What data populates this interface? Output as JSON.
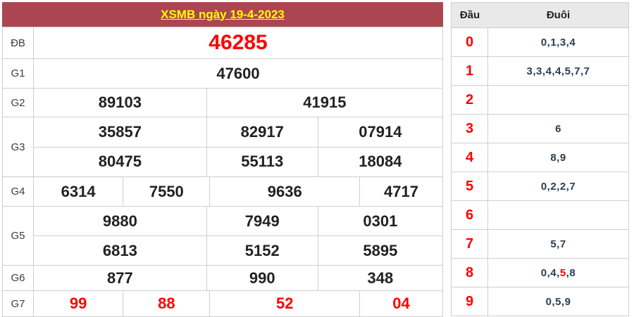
{
  "title": "XSMB ngày 19-4-2023",
  "colors": {
    "header_bg": "#ab4650",
    "title_text": "#ffff00",
    "highlight_red": "#ff0000",
    "tail_text": "#2c3e50",
    "border": "#cfcfcf",
    "head_row_bg": "#e9e9e9"
  },
  "left_table": {
    "labels": {
      "db": "ĐB",
      "g1": "G1",
      "g2": "G2",
      "g3": "G3",
      "g4": "G4",
      "g5": "G5",
      "g6": "G6",
      "g7": "G7"
    },
    "db": "46285",
    "g1": "47600",
    "g2": [
      "89103",
      "41915"
    ],
    "g3": [
      [
        "35857",
        "82917",
        "07914"
      ],
      [
        "80475",
        "55113",
        "18084"
      ]
    ],
    "g4": [
      "6314",
      "7550",
      "9636",
      "4717"
    ],
    "g5": [
      [
        "9880",
        "7949",
        "0301"
      ],
      [
        "6813",
        "5152",
        "5895"
      ]
    ],
    "g6": [
      "877",
      "990",
      "348"
    ],
    "g7": [
      "99",
      "88",
      "52",
      "04"
    ]
  },
  "head_tail": {
    "headers": {
      "dau": "Đầu",
      "duoi": "Đuôi"
    },
    "rows": [
      {
        "dau": "0",
        "duoi": "0,1,3,4"
      },
      {
        "dau": "1",
        "duoi": "3,3,4,4,5,7,7"
      },
      {
        "dau": "2",
        "duoi": ""
      },
      {
        "dau": "3",
        "duoi": "6"
      },
      {
        "dau": "4",
        "duoi": "8,9"
      },
      {
        "dau": "5",
        "duoi": "0,2,2,7"
      },
      {
        "dau": "6",
        "duoi": ""
      },
      {
        "dau": "7",
        "duoi": "5,7"
      },
      {
        "dau": "8",
        "duoi_before": "0,4,",
        "duoi_highlight": "5",
        "duoi_after": ",8"
      },
      {
        "dau": "9",
        "duoi": "0,5,9"
      }
    ]
  }
}
